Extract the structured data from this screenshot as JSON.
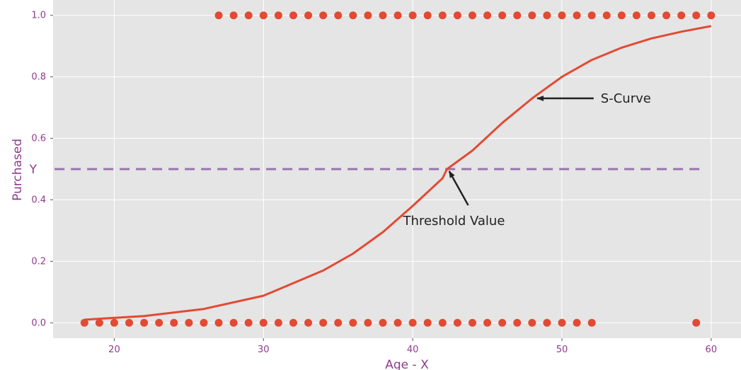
{
  "chart_data": {
    "type": "scatter",
    "xlabel": "Age - X",
    "ylabel": "Purchased",
    "xlim": [
      15.9,
      62
    ],
    "ylim": [
      -0.05,
      1.05
    ],
    "xticks": [
      "20",
      "30",
      "40",
      "50",
      "60"
    ],
    "yticks": [
      "0.0",
      "0.2",
      "0.4",
      "0.6",
      "0.8",
      "1.0"
    ],
    "grid": true,
    "background": "#e5e5e5",
    "colors": {
      "points": "#e24a33",
      "curve": "#e24a33",
      "threshold": "#9b72b0",
      "text": "#8e3b8e"
    },
    "series": [
      {
        "values": [
          [
            18,
            0
          ],
          [
            19,
            0
          ],
          [
            20,
            0
          ],
          [
            21,
            0
          ],
          [
            22,
            0
          ],
          [
            23,
            0
          ],
          [
            24,
            0
          ],
          [
            25,
            0
          ],
          [
            26,
            0
          ],
          [
            27,
            0
          ],
          [
            28,
            0
          ],
          [
            29,
            0
          ],
          [
            30,
            0
          ],
          [
            31,
            0
          ],
          [
            32,
            0
          ],
          [
            33,
            0
          ],
          [
            34,
            0
          ],
          [
            35,
            0
          ],
          [
            36,
            0
          ],
          [
            37,
            0
          ],
          [
            38,
            0
          ],
          [
            39,
            0
          ],
          [
            40,
            0
          ],
          [
            41,
            0
          ],
          [
            42,
            0
          ],
          [
            43,
            0
          ],
          [
            44,
            0
          ],
          [
            45,
            0
          ],
          [
            46,
            0
          ],
          [
            47,
            0
          ],
          [
            48,
            0
          ],
          [
            49,
            0
          ],
          [
            50,
            0
          ],
          [
            51,
            0
          ],
          [
            52,
            0
          ],
          [
            59,
            0
          ],
          [
            27,
            1
          ],
          [
            28,
            1
          ],
          [
            29,
            1
          ],
          [
            30,
            1
          ],
          [
            31,
            1
          ],
          [
            32,
            1
          ],
          [
            33,
            1
          ],
          [
            34,
            1
          ],
          [
            35,
            1
          ],
          [
            36,
            1
          ],
          [
            37,
            1
          ],
          [
            38,
            1
          ],
          [
            39,
            1
          ],
          [
            40,
            1
          ],
          [
            41,
            1
          ],
          [
            42,
            1
          ],
          [
            43,
            1
          ],
          [
            44,
            1
          ],
          [
            45,
            1
          ],
          [
            46,
            1
          ],
          [
            47,
            1
          ],
          [
            48,
            1
          ],
          [
            49,
            1
          ],
          [
            50,
            1
          ],
          [
            51,
            1
          ],
          [
            52,
            1
          ],
          [
            53,
            1
          ],
          [
            54,
            1
          ],
          [
            55,
            1
          ],
          [
            56,
            1
          ],
          [
            57,
            1
          ],
          [
            58,
            1
          ],
          [
            59,
            1
          ],
          [
            60,
            1
          ]
        ]
      },
      {
        "type": "line",
        "curve": {
          "x": [
            18,
            22,
            26,
            30,
            34,
            36,
            38,
            40,
            42,
            42.3,
            44,
            46,
            48,
            50,
            52,
            54,
            56,
            58,
            60
          ],
          "y": [
            0.01,
            0.022,
            0.045,
            0.088,
            0.17,
            0.225,
            0.295,
            0.38,
            0.47,
            0.5,
            0.56,
            0.65,
            0.73,
            0.8,
            0.855,
            0.895,
            0.925,
            0.947,
            0.965
          ]
        }
      }
    ],
    "threshold": {
      "y": 0.5,
      "x_start": 16,
      "x_end": 59.5,
      "label": "Y"
    },
    "annotations": [
      {
        "text": "S-Curve",
        "point": [
          48.2,
          0.73
        ],
        "text_at": [
          52.6,
          0.73
        ]
      },
      {
        "text": "Threshold Value",
        "point": [
          42.4,
          0.5
        ],
        "text_at": [
          45,
          0.35
        ]
      }
    ]
  }
}
